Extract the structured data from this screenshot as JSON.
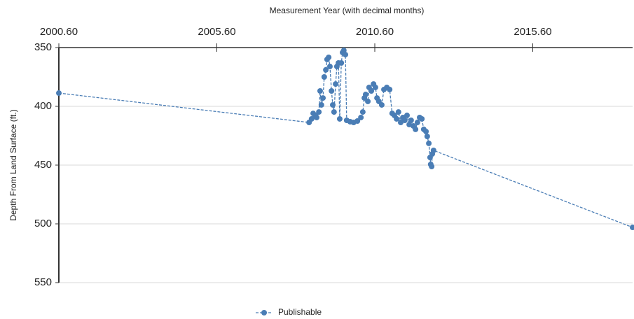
{
  "chart_data": {
    "type": "line",
    "x_label": "Measurement Year (with decimal months)",
    "y_label": "Depth From Land Surface (ft.)",
    "x_axis_position": "top",
    "y_inverted": true,
    "grid": true,
    "legend": "bottom",
    "xlim": [
      2000.6,
      2018.76
    ],
    "ylim": [
      350,
      550
    ],
    "xticks": [
      {
        "value": 2000.6,
        "label": "2000.60"
      },
      {
        "value": 2005.6,
        "label": "2005.60"
      },
      {
        "value": 2010.6,
        "label": "2010.60"
      },
      {
        "value": 2015.6,
        "label": "2015.60"
      }
    ],
    "yticks": [
      350,
      400,
      450,
      500,
      550
    ],
    "series": [
      {
        "name": "Publishable",
        "color": "#4a7db5",
        "x": [
          2000.6,
          2008.52,
          2008.6,
          2008.65,
          2008.72,
          2008.76,
          2008.83,
          2008.87,
          2008.91,
          2008.96,
          2009.0,
          2009.05,
          2009.09,
          2009.14,
          2009.18,
          2009.23,
          2009.27,
          2009.31,
          2009.36,
          2009.4,
          2009.45,
          2009.49,
          2009.54,
          2009.58,
          2009.62,
          2009.67,
          2009.71,
          2009.82,
          2009.93,
          2010.05,
          2010.16,
          2010.22,
          2010.27,
          2010.31,
          2010.38,
          2010.42,
          2010.49,
          2010.56,
          2010.62,
          2010.67,
          2010.73,
          2010.82,
          2010.89,
          2010.98,
          2011.07,
          2011.15,
          2011.22,
          2011.29,
          2011.35,
          2011.42,
          2011.49,
          2011.55,
          2011.62,
          2011.69,
          2011.75,
          2011.82,
          2011.89,
          2011.95,
          2012.02,
          2012.09,
          2012.15,
          2012.22,
          2012.26,
          2012.31,
          2012.35,
          2012.37,
          2012.4,
          2012.42,
          2012.46,
          2018.76
        ],
        "values": [
          388.7,
          413.7,
          410.7,
          406.0,
          407.7,
          409.5,
          404.8,
          386.9,
          398.8,
          392.9,
          375.0,
          369.0,
          360.1,
          358.3,
          366.1,
          386.9,
          398.8,
          404.8,
          381.0,
          366.1,
          363.1,
          410.7,
          363.1,
          354.2,
          352.4,
          356.0,
          411.9,
          413.1,
          413.7,
          412.5,
          409.5,
          404.8,
          392.9,
          389.9,
          395.8,
          383.9,
          386.9,
          381.0,
          383.9,
          392.9,
          395.8,
          398.8,
          385.7,
          383.9,
          385.7,
          406.0,
          407.7,
          410.7,
          404.8,
          413.7,
          409.5,
          411.9,
          407.7,
          415.5,
          411.9,
          416.7,
          419.6,
          413.7,
          409.5,
          410.7,
          419.6,
          421.4,
          425.6,
          431.5,
          443.5,
          449.4,
          451.2,
          440.5,
          437.5,
          503.0
        ]
      }
    ]
  }
}
